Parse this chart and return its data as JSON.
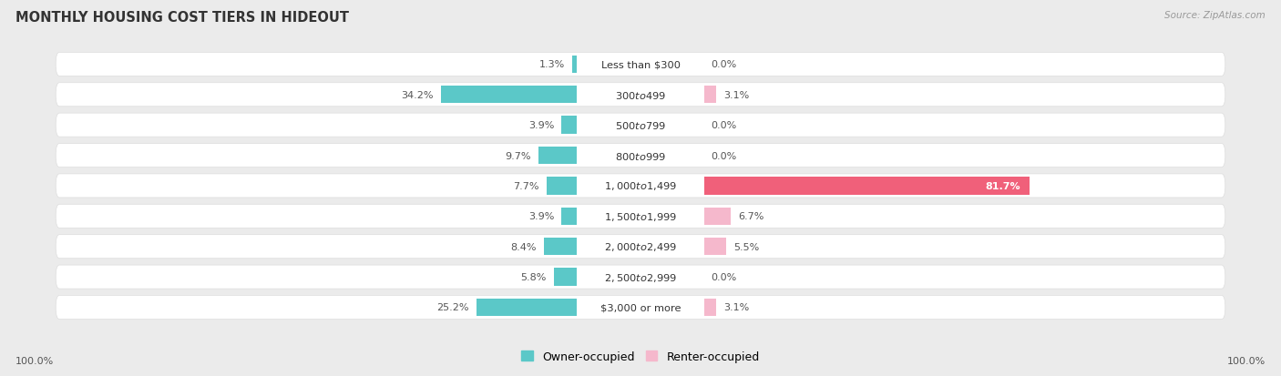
{
  "title": "MONTHLY HOUSING COST TIERS IN HIDEOUT",
  "source": "Source: ZipAtlas.com",
  "categories": [
    "Less than $300",
    "$300 to $499",
    "$500 to $799",
    "$800 to $999",
    "$1,000 to $1,499",
    "$1,500 to $1,999",
    "$2,000 to $2,499",
    "$2,500 to $2,999",
    "$3,000 or more"
  ],
  "owner_values": [
    1.3,
    34.2,
    3.9,
    9.7,
    7.7,
    3.9,
    8.4,
    5.8,
    25.2
  ],
  "renter_values": [
    0.0,
    3.1,
    0.0,
    0.0,
    81.7,
    6.7,
    5.5,
    0.0,
    3.1
  ],
  "owner_color": "#5bc8c8",
  "renter_color_light": "#f5b8cc",
  "renter_color_bright": "#f0607a",
  "background_color": "#ebebeb",
  "bar_background": "#ffffff",
  "label_color": "#555555",
  "max_value": 100.0,
  "legend_owner": "Owner-occupied",
  "legend_renter": "Renter-occupied",
  "axis_left_label": "100.0%",
  "axis_right_label": "100.0%",
  "title_color": "#333333",
  "source_color": "#999999",
  "value_color": "#555555"
}
